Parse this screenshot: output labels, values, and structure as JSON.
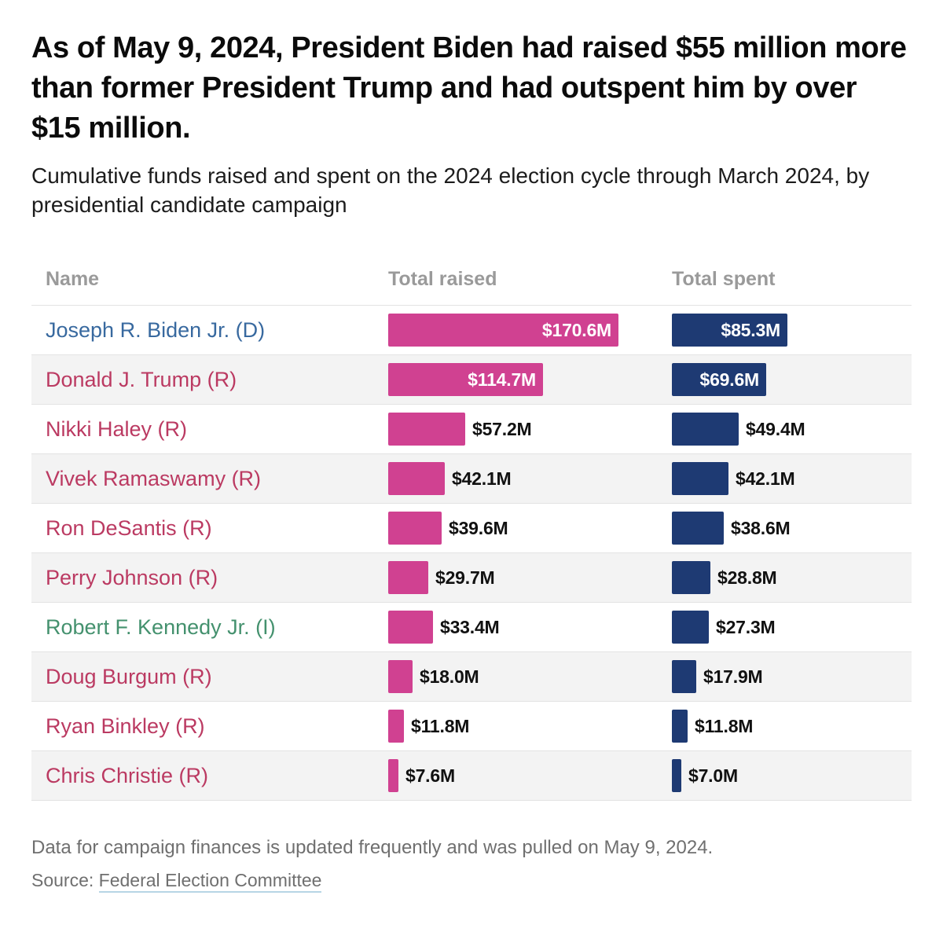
{
  "header": {
    "title": "As of May 9, 2024, President Biden had raised $55 million more than former President Trump and had outspent him by over $15 million.",
    "subtitle": "Cumulative funds raised and spent on the 2024 election cycle through March 2024, by presidential candidate campaign"
  },
  "table": {
    "columns": [
      "Name",
      "Total raised",
      "Total spent"
    ]
  },
  "chart_data": {
    "type": "bar",
    "title": "As of May 9, 2024, President Biden had raised $55 million more than former President Trump and had outspent him by over $15 million.",
    "subtitle": "Cumulative funds raised and spent on the 2024 election cycle through March 2024, by presidential candidate campaign",
    "categories": [
      "Joseph R. Biden Jr. (D)",
      "Donald J. Trump (R)",
      "Nikki Haley (R)",
      "Vivek Ramaswamy (R)",
      "Ron DeSantis (R)",
      "Perry Johnson (R)",
      "Robert F. Kennedy Jr. (I)",
      "Doug Burgum (R)",
      "Ryan Binkley (R)",
      "Chris Christie (R)"
    ],
    "category_parties": [
      "D",
      "R",
      "R",
      "R",
      "R",
      "R",
      "I",
      "R",
      "R",
      "R"
    ],
    "series": [
      {
        "name": "Total raised",
        "values": [
          170.6,
          114.7,
          57.2,
          42.1,
          39.6,
          29.7,
          33.4,
          18.0,
          11.8,
          7.6
        ],
        "labels": [
          "$170.6M",
          "$114.7M",
          "$57.2M",
          "$42.1M",
          "$39.6M",
          "$29.7M",
          "$33.4M",
          "$18.0M",
          "$11.8M",
          "$7.6M"
        ],
        "color": "#d04191"
      },
      {
        "name": "Total spent",
        "values": [
          85.3,
          69.6,
          49.4,
          42.1,
          38.6,
          28.8,
          27.3,
          17.9,
          11.8,
          7.0
        ],
        "labels": [
          "$85.3M",
          "$69.6M",
          "$49.4M",
          "$42.1M",
          "$38.6M",
          "$28.8M",
          "$27.3M",
          "$17.9M",
          "$11.8M",
          "$7.0M"
        ],
        "color": "#1e3a73"
      }
    ],
    "xlim": [
      0,
      170.6
    ],
    "grid": false,
    "legend_position": "column-headers"
  },
  "footer": {
    "note": "Data for campaign finances is updated frequently and was pulled on May 9, 2024.",
    "source_prefix": "Source: ",
    "source_link": "Federal Election Committee"
  },
  "colors": {
    "raised_bar": "#d04191",
    "spent_bar": "#1e3a73",
    "party": {
      "D": "#38699f",
      "R": "#bb3a62",
      "I": "#44916e"
    },
    "header_text": "#9a9a9a",
    "alt_row_bg": "#f3f3f3",
    "divider": "#e3e3e3",
    "footer_text": "#6f6f6f",
    "link_underline": "#b7d5e5",
    "bar_label_inside": "#ffffff",
    "bar_label_outside": "#111111"
  }
}
